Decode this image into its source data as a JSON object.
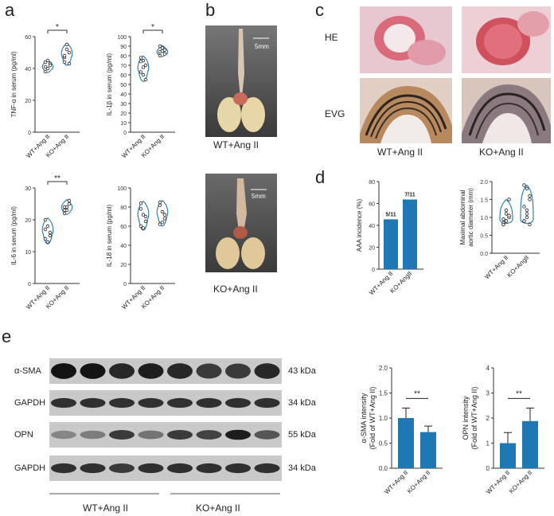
{
  "panels": {
    "a": {
      "letter": "a",
      "group1": "WT+Ang II",
      "group2": "KO+Ang II",
      "plots": [
        {
          "ylabel": "TNF-α in serum (pg/ml)",
          "ticks": [
            "0",
            "20",
            "40",
            "60"
          ],
          "ymax": 60,
          "sig": "*",
          "g1": [
            44,
            40,
            43,
            38,
            45,
            42,
            41
          ],
          "g2": [
            44,
            52,
            50,
            47,
            55,
            43,
            48
          ]
        },
        {
          "ylabel": "IL-1β in serum (pg/ml)",
          "ticks": [
            "0",
            "10",
            "20",
            "30",
            "40",
            "50",
            "60",
            "70",
            "80",
            "90",
            "100"
          ],
          "ymax": 100,
          "sig": "*",
          "g1": [
            78,
            75,
            70,
            63,
            60,
            55,
            74,
            68
          ],
          "g2": [
            84,
            85,
            86,
            80,
            88,
            82,
            90
          ]
        },
        {
          "ylabel": "IL-6 in serum (pg/ml)",
          "ticks": [
            "0",
            "10",
            "20",
            "30"
          ],
          "ymax": 30,
          "sig": "**",
          "g1": [
            20,
            18,
            16,
            14,
            13,
            15,
            17
          ],
          "g2": [
            24,
            23,
            25,
            22,
            24,
            26,
            23
          ]
        },
        {
          "ylabel": "IL-18 in serum (pg/ml)",
          "ticks": [
            "0",
            "20",
            "40",
            "60",
            "80",
            "100"
          ],
          "ymax": 100,
          "sig": "",
          "g1": [
            84,
            72,
            65,
            60,
            58,
            70,
            78
          ],
          "g2": [
            82,
            75,
            68,
            62,
            64,
            72,
            85
          ]
        }
      ]
    },
    "b": {
      "letter": "b",
      "top_label": "WT+Ang II",
      "bottom_label": "KO+Ang II",
      "scale": "5mm"
    },
    "c": {
      "letter": "c",
      "row1": "HE",
      "row2": "EVG",
      "col1": "WT+Ang II",
      "col2": "KO+Ang II"
    },
    "d": {
      "letter": "d",
      "incidence": {
        "ylabel": "AAA incidence (%)",
        "ticks": [
          "0",
          "20",
          "40",
          "60",
          "80"
        ],
        "ymax": 80,
        "categories": [
          "WT+Ang II",
          "KO+AngII"
        ],
        "values": [
          45.5,
          63.6
        ],
        "labels": [
          "5/11",
          "7/11"
        ]
      },
      "diameter": {
        "ylabel1": "Maximal abdominal",
        "ylabel2": "aortic diameter (mm)",
        "ticks": [
          "0.0",
          "0.5",
          "1.0",
          "1.5",
          "2.0"
        ],
        "ymax": 2.0,
        "categories": [
          "WT+Ang II",
          "KO+AngII"
        ],
        "g1": [
          0.8,
          0.9,
          1.0,
          0.85,
          1.2,
          1.5,
          0.95,
          0.9,
          1.05,
          0.8,
          1.1
        ],
        "g2": [
          0.9,
          1.8,
          1.5,
          1.3,
          1.0,
          0.8,
          1.9,
          1.1,
          1.6,
          0.9,
          1.2
        ]
      }
    },
    "e": {
      "letter": "e",
      "blots": [
        {
          "name": "α-SMA",
          "kda": "43 kDa",
          "intensity": [
            0.95,
            0.95,
            0.85,
            0.9,
            0.85,
            0.75,
            0.75,
            0.85
          ]
        },
        {
          "name": "GAPDH",
          "kda": "34 kDa",
          "intensity": [
            0.8,
            0.8,
            0.8,
            0.8,
            0.8,
            0.8,
            0.8,
            0.8
          ]
        },
        {
          "name": "OPN",
          "kda": "55 kDa",
          "intensity": [
            0.35,
            0.4,
            0.75,
            0.45,
            0.75,
            0.7,
            0.9,
            0.6
          ]
        },
        {
          "name": "GAPDH",
          "kda": "34 kDa",
          "intensity": [
            0.8,
            0.8,
            0.75,
            0.8,
            0.8,
            0.8,
            0.8,
            0.8
          ]
        }
      ],
      "group1": "WT+Ang II",
      "group2": "KO+Ang II",
      "sma_chart": {
        "ylabel1": "α-SMA intensity",
        "ylabel2": "(Fold of WT+Ang II)",
        "ticks": [
          "0.0",
          "0.5",
          "1.0",
          "1.5",
          "2.0"
        ],
        "ymax": 2.0,
        "sig": "**",
        "categories": [
          "WT+Ang II",
          "KO+Ang II"
        ],
        "values": [
          1.0,
          0.72
        ],
        "errors": [
          0.2,
          0.12
        ]
      },
      "opn_chart": {
        "ylabel1": "OPN intensity",
        "ylabel2": "(Fold of WT+Ang II)",
        "ticks": [
          "0",
          "1",
          "2",
          "3",
          "4"
        ],
        "ymax": 4,
        "sig": "**",
        "categories": [
          "WT+Ang II",
          "KO+Ang II"
        ],
        "values": [
          1.0,
          1.88
        ],
        "errors": [
          0.42,
          0.52
        ]
      }
    }
  },
  "colors": {
    "bar": "#1f77b4",
    "violin": "#1f77b4"
  }
}
